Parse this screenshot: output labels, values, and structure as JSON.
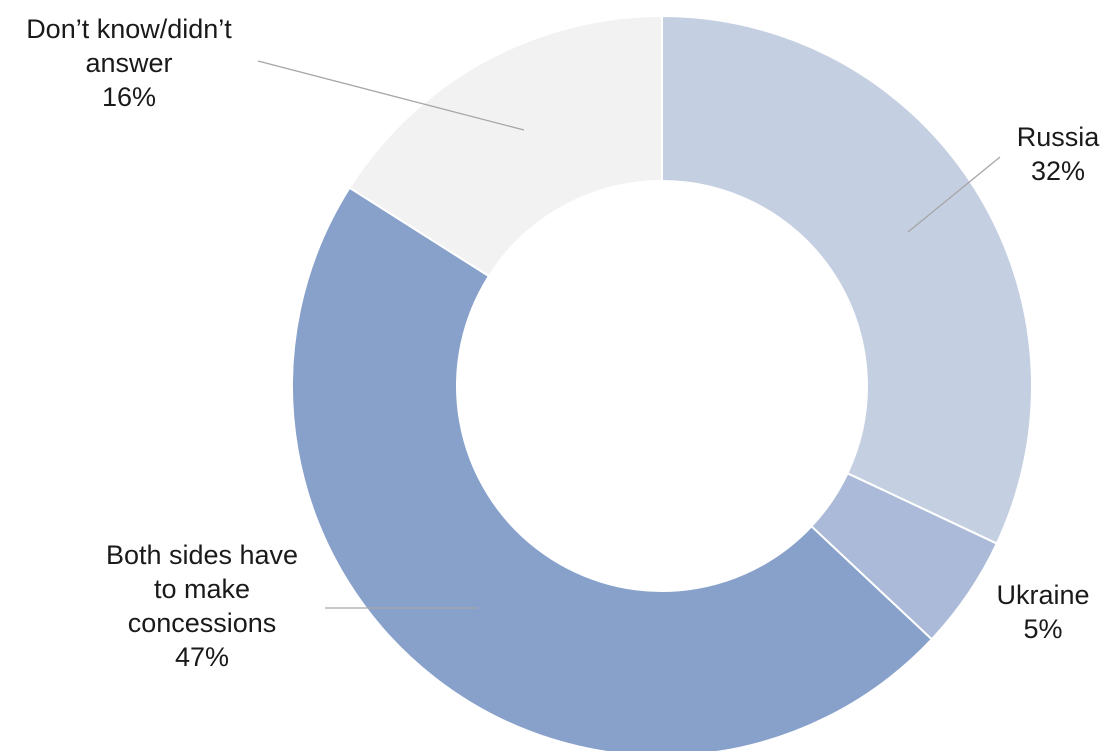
{
  "chart_data": {
    "type": "pie",
    "variant": "donut",
    "title": "",
    "legend": "none",
    "slices": [
      {
        "label_lines": [
          "Russia"
        ],
        "value": 32,
        "value_label": "32%",
        "color": "#c4cfe1"
      },
      {
        "label_lines": [
          "Ukraine"
        ],
        "value": 5,
        "value_label": "5%",
        "color": "#abbad8"
      },
      {
        "label_lines": [
          "Both sides have",
          "to make",
          "concessions"
        ],
        "value": 47,
        "value_label": "47%",
        "color": "#87a1cb"
      },
      {
        "label_lines": [
          "Don’t know/didn’t",
          "answer"
        ],
        "value": 16,
        "value_label": "16%",
        "color": "#f2f2f2"
      }
    ]
  }
}
